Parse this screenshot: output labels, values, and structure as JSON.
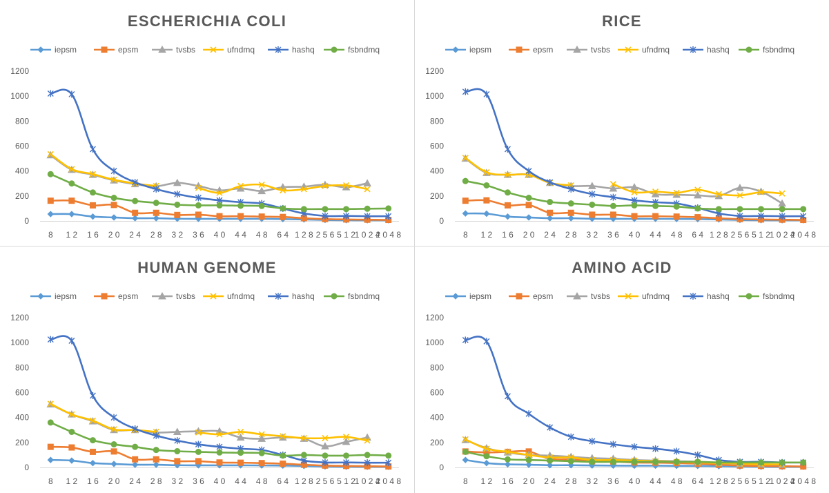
{
  "chart_data": [
    {
      "type": "line",
      "title": "ESCHERICHIA COLI",
      "categories": [
        "8",
        "12",
        "16",
        "20",
        "24",
        "28",
        "32",
        "36",
        "40",
        "44",
        "48",
        "64",
        "128",
        "256",
        "512",
        "1024",
        "2048"
      ],
      "ylim": [
        0,
        1200
      ],
      "yticks": [
        0,
        200,
        400,
        600,
        800,
        1000,
        1200
      ],
      "legend_position": "top",
      "grid": false,
      "series": [
        {
          "name": "iepsm",
          "color": "#5b9bd5",
          "marker": "diamond",
          "values": [
            55,
            55,
            35,
            28,
            22,
            22,
            18,
            17,
            17,
            17,
            17,
            15,
            12,
            8,
            6,
            5,
            5
          ]
        },
        {
          "name": "epsm",
          "color": "#ed7d31",
          "marker": "square",
          "values": [
            162,
            162,
            125,
            128,
            65,
            65,
            48,
            50,
            38,
            38,
            35,
            32,
            22,
            15,
            12,
            10,
            8
          ]
        },
        {
          "name": "tvsbs",
          "color": "#a5a5a5",
          "marker": "triangle",
          "values": [
            527,
            410,
            370,
            325,
            295,
            278,
            305,
            280,
            245,
            260,
            240,
            270,
            275,
            290,
            270,
            302,
            null
          ]
        },
        {
          "name": "ufndmq",
          "color": "#ffc000",
          "marker": "x",
          "values": [
            535,
            415,
            375,
            330,
            300,
            280,
            null,
            265,
            225,
            280,
            290,
            245,
            255,
            280,
            285,
            255,
            null
          ]
        },
        {
          "name": "hashq",
          "color": "#4472c4",
          "marker": "asterisk",
          "values": [
            1020,
            1015,
            575,
            400,
            310,
            255,
            215,
            185,
            165,
            150,
            140,
            100,
            60,
            40,
            40,
            38,
            38
          ]
        },
        {
          "name": "fsbndmq",
          "color": "#70ad47",
          "marker": "circle",
          "values": [
            375,
            300,
            228,
            185,
            160,
            145,
            130,
            125,
            125,
            122,
            120,
            100,
            95,
            95,
            95,
            98,
            100
          ]
        }
      ]
    },
    {
      "type": "line",
      "title": "RICE",
      "categories": [
        "8",
        "12",
        "16",
        "20",
        "24",
        "28",
        "32",
        "36",
        "40",
        "44",
        "48",
        "64",
        "128",
        "256",
        "512",
        "1024",
        "2048"
      ],
      "ylim": [
        0,
        1200
      ],
      "yticks": [
        0,
        200,
        400,
        600,
        800,
        1000,
        1200
      ],
      "legend_position": "top",
      "grid": false,
      "series": [
        {
          "name": "iepsm",
          "color": "#5b9bd5",
          "marker": "diamond",
          "values": [
            60,
            58,
            35,
            28,
            22,
            22,
            18,
            17,
            17,
            17,
            16,
            15,
            12,
            8,
            6,
            5,
            5
          ]
        },
        {
          "name": "epsm",
          "color": "#ed7d31",
          "marker": "square",
          "values": [
            162,
            165,
            125,
            128,
            65,
            65,
            50,
            50,
            38,
            38,
            35,
            30,
            22,
            15,
            12,
            10,
            8
          ]
        },
        {
          "name": "tvsbs",
          "color": "#a5a5a5",
          "marker": "triangle",
          "values": [
            500,
            385,
            370,
            370,
            305,
            280,
            280,
            260,
            270,
            215,
            210,
            205,
            200,
            265,
            235,
            140,
            null
          ]
        },
        {
          "name": "ufndmq",
          "color": "#ffc000",
          "marker": "x",
          "values": [
            505,
            390,
            370,
            370,
            305,
            285,
            null,
            295,
            230,
            235,
            225,
            250,
            215,
            205,
            230,
            220,
            null
          ]
        },
        {
          "name": "hashq",
          "color": "#4472c4",
          "marker": "asterisk",
          "values": [
            1035,
            1015,
            575,
            400,
            310,
            255,
            215,
            190,
            165,
            150,
            140,
            105,
            60,
            40,
            40,
            38,
            38
          ]
        },
        {
          "name": "fsbndmq",
          "color": "#70ad47",
          "marker": "circle",
          "values": [
            320,
            285,
            228,
            185,
            152,
            140,
            130,
            120,
            125,
            120,
            115,
            100,
            95,
            95,
            95,
            95,
            95
          ]
        }
      ]
    },
    {
      "type": "line",
      "title": "HUMAN GENOME",
      "categories": [
        "8",
        "12",
        "16",
        "20",
        "24",
        "28",
        "32",
        "36",
        "40",
        "44",
        "48",
        "64",
        "128",
        "256",
        "512",
        "1024",
        "2048"
      ],
      "ylim": [
        0,
        1200
      ],
      "yticks": [
        0,
        200,
        400,
        600,
        800,
        1000,
        1200
      ],
      "legend_position": "top",
      "grid": false,
      "series": [
        {
          "name": "iepsm",
          "color": "#5b9bd5",
          "marker": "diamond",
          "values": [
            60,
            55,
            35,
            28,
            22,
            22,
            18,
            17,
            17,
            17,
            16,
            15,
            12,
            8,
            6,
            5,
            5
          ]
        },
        {
          "name": "epsm",
          "color": "#ed7d31",
          "marker": "square",
          "values": [
            165,
            160,
            125,
            128,
            65,
            65,
            50,
            50,
            40,
            38,
            35,
            30,
            22,
            15,
            12,
            10,
            8
          ]
        },
        {
          "name": "tvsbs",
          "color": "#a5a5a5",
          "marker": "triangle",
          "values": [
            505,
            425,
            370,
            300,
            300,
            280,
            285,
            290,
            290,
            240,
            230,
            240,
            230,
            170,
            205,
            240,
            null
          ]
        },
        {
          "name": "ufndmq",
          "color": "#ffc000",
          "marker": "x",
          "values": [
            510,
            425,
            375,
            305,
            300,
            285,
            null,
            280,
            265,
            285,
            265,
            250,
            235,
            235,
            245,
            215,
            null
          ]
        },
        {
          "name": "hashq",
          "color": "#4472c4",
          "marker": "asterisk",
          "values": [
            1025,
            1015,
            575,
            400,
            310,
            255,
            215,
            185,
            165,
            150,
            140,
            100,
            55,
            40,
            40,
            38,
            38
          ]
        },
        {
          "name": "fsbndmq",
          "color": "#70ad47",
          "marker": "circle",
          "values": [
            360,
            285,
            218,
            185,
            165,
            140,
            130,
            125,
            120,
            118,
            115,
            95,
            100,
            95,
            95,
            100,
            95
          ]
        }
      ]
    },
    {
      "type": "line",
      "title": "AMINO ACID",
      "categories": [
        "8",
        "12",
        "16",
        "20",
        "24",
        "28",
        "32",
        "36",
        "40",
        "44",
        "48",
        "64",
        "128",
        "256",
        "512",
        "1024",
        "2048"
      ],
      "ylim": [
        0,
        1200
      ],
      "yticks": [
        0,
        200,
        400,
        600,
        800,
        1000,
        1200
      ],
      "legend_position": "top",
      "grid": false,
      "series": [
        {
          "name": "iepsm",
          "color": "#5b9bd5",
          "marker": "diamond",
          "values": [
            60,
            35,
            25,
            22,
            18,
            18,
            16,
            15,
            14,
            14,
            13,
            12,
            10,
            8,
            6,
            5,
            5
          ]
        },
        {
          "name": "epsm",
          "color": "#ed7d31",
          "marker": "square",
          "values": [
            128,
            120,
            125,
            128,
            68,
            65,
            50,
            48,
            40,
            38,
            35,
            30,
            22,
            15,
            12,
            10,
            8
          ]
        },
        {
          "name": "tvsbs",
          "color": "#a5a5a5",
          "marker": "triangle",
          "values": [
            220,
            155,
            120,
            100,
            95,
            85,
            75,
            70,
            60,
            55,
            50,
            45,
            35,
            28,
            25,
            22,
            null
          ]
        },
        {
          "name": "ufndmq",
          "color": "#ffc000",
          "marker": "x",
          "values": [
            225,
            150,
            125,
            100,
            80,
            80,
            60,
            60,
            55,
            50,
            45,
            40,
            35,
            30,
            25,
            25,
            null
          ]
        },
        {
          "name": "hashq",
          "color": "#4472c4",
          "marker": "asterisk",
          "values": [
            1020,
            1010,
            570,
            430,
            320,
            245,
            210,
            185,
            165,
            150,
            130,
            100,
            60,
            45,
            45,
            40,
            40
          ]
        },
        {
          "name": "fsbndmq",
          "color": "#70ad47",
          "marker": "circle",
          "values": [
            125,
            90,
            65,
            60,
            55,
            50,
            45,
            45,
            45,
            45,
            45,
            45,
            40,
            40,
            40,
            40,
            40
          ]
        }
      ]
    }
  ]
}
